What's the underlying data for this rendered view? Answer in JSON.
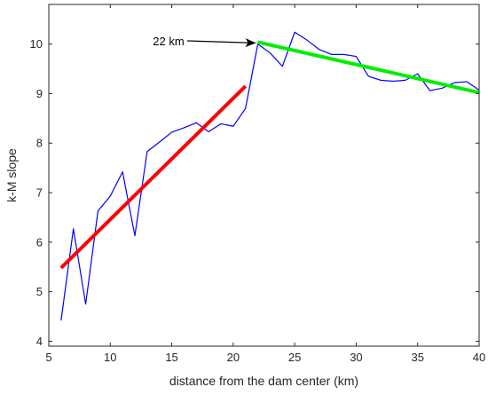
{
  "chart_data": {
    "type": "line",
    "title": "",
    "xlabel": "distance from the dam center (km)",
    "ylabel": "k-M slope",
    "xlim": [
      5,
      40
    ],
    "ylim": [
      3.9,
      10.8
    ],
    "x_ticks": [
      5,
      10,
      15,
      20,
      25,
      30,
      35,
      40
    ],
    "y_ticks": [
      4,
      5,
      6,
      7,
      8,
      9,
      10
    ],
    "grid": false,
    "legend": "none",
    "series": [
      {
        "color": "#0000ff",
        "style": "thin-line",
        "x": [
          6,
          7,
          8,
          9,
          10,
          11,
          12,
          13,
          14,
          15,
          16,
          17,
          18,
          19,
          20,
          21,
          22,
          23,
          24,
          25,
          26,
          27,
          28,
          29,
          30,
          31,
          32,
          33,
          34,
          35,
          36,
          37,
          38,
          39,
          40
        ],
        "y": [
          4.42,
          6.27,
          4.75,
          6.63,
          6.93,
          7.42,
          6.13,
          7.83,
          8.02,
          8.22,
          8.31,
          8.41,
          8.23,
          8.39,
          8.34,
          8.7,
          10.0,
          9.82,
          9.55,
          10.24,
          10.08,
          9.89,
          9.79,
          9.79,
          9.75,
          9.35,
          9.27,
          9.25,
          9.27,
          9.4,
          9.06,
          9.11,
          9.22,
          9.24,
          9.07
        ]
      },
      {
        "color": "#ff0000",
        "style": "thick-line",
        "x": [
          6,
          21
        ],
        "y": [
          5.48,
          9.15
        ]
      },
      {
        "color": "#00ee00",
        "style": "thick-line",
        "x": [
          22,
          40
        ],
        "y": [
          10.04,
          9.02
        ]
      }
    ],
    "annotations": [
      {
        "text": "22 km",
        "x": 22,
        "y": 10.04
      }
    ]
  }
}
